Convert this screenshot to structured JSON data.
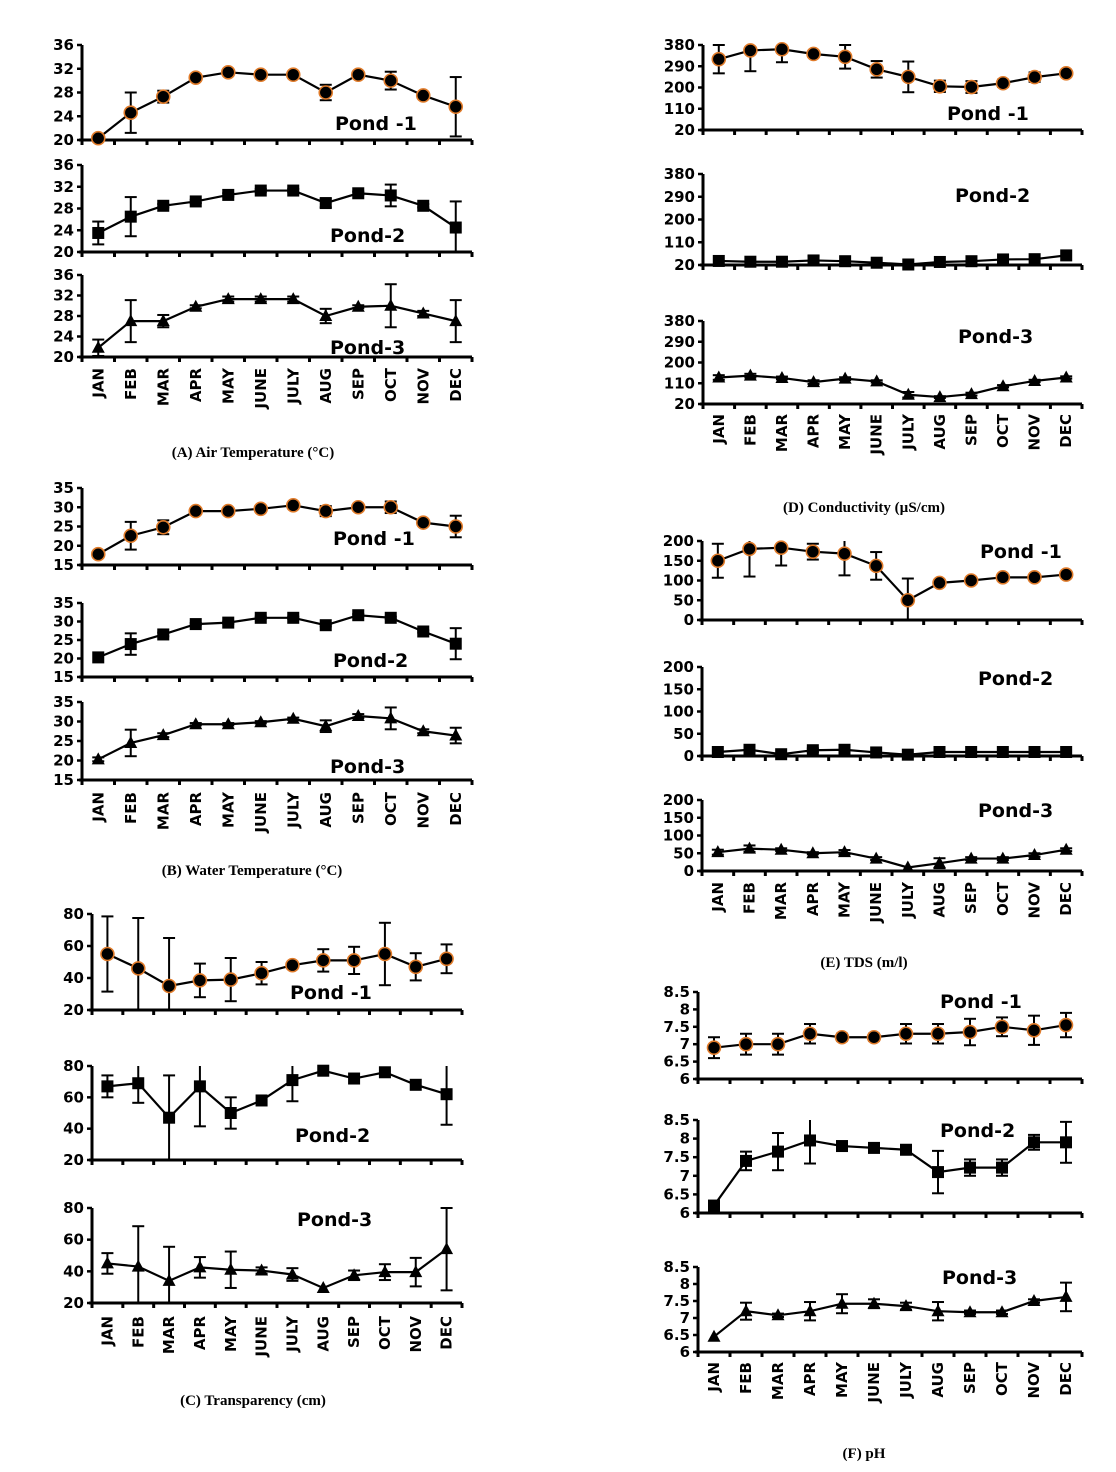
{
  "colors": {
    "line": "#000000",
    "marker_fill": "#000000",
    "pond1_marker_outline": "#e07b2a"
  },
  "chart_data": [
    {
      "id": "A",
      "type": "line",
      "title": "(A) Air Temperature (°C)",
      "xlabel": "",
      "ylabel": "",
      "categories": [
        "JAN",
        "FEB",
        "MAR",
        "APR",
        "MAY",
        "JUNE",
        "JULY",
        "AUG",
        "SEP",
        "OCT",
        "NOV",
        "DEC"
      ],
      "yticks": [
        "20",
        "24",
        "28",
        "32",
        "36"
      ],
      "ylim": [
        20,
        36
      ],
      "grid": false,
      "series": [
        {
          "name": "Pond -1",
          "marker": "circle",
          "values": [
            20.3,
            24.6,
            27.3,
            30.5,
            31.4,
            31.0,
            31.0,
            28.0,
            31.0,
            30.0,
            27.5,
            25.6
          ],
          "errors": [
            0,
            3.4,
            1.0,
            0.5,
            0.4,
            0.3,
            0.3,
            1.3,
            0.4,
            1.5,
            0.3,
            5.0
          ]
        },
        {
          "name": "Pond-2",
          "marker": "square",
          "values": [
            23.5,
            26.5,
            28.5,
            29.3,
            30.5,
            31.3,
            31.3,
            29.0,
            30.8,
            30.4,
            28.5,
            24.5
          ],
          "errors": [
            2.1,
            3.6,
            0.3,
            0.3,
            0.3,
            0.3,
            0.3,
            0.8,
            0.3,
            2.0,
            0.3,
            4.8
          ]
        },
        {
          "name": "Pond-3",
          "marker": "triangle",
          "values": [
            21.8,
            27.0,
            27.0,
            29.8,
            31.3,
            31.3,
            31.3,
            28.0,
            29.8,
            30.0,
            28.5,
            27.0
          ],
          "errors": [
            1.6,
            4.1,
            1.2,
            0.3,
            0.5,
            0.5,
            0.5,
            1.4,
            0.3,
            4.2,
            0.5,
            4.1
          ]
        }
      ]
    },
    {
      "id": "B",
      "type": "line",
      "title": "(B) Water Temperature (°C)",
      "xlabel": "",
      "ylabel": "",
      "categories": [
        "JAN",
        "FEB",
        "MAR",
        "APR",
        "MAY",
        "JUNE",
        "JULY",
        "AUG",
        "SEP",
        "OCT",
        "NOV",
        "DEC"
      ],
      "yticks": [
        "15",
        "20",
        "25",
        "30",
        "35"
      ],
      "ylim": [
        15,
        35
      ],
      "grid": false,
      "series": [
        {
          "name": "Pond -1",
          "marker": "circle",
          "values": [
            17.8,
            22.6,
            24.8,
            29.0,
            29.0,
            29.6,
            30.5,
            29.0,
            30.0,
            30.0,
            26.0,
            25.0
          ],
          "errors": [
            0,
            3.6,
            1.8,
            0.3,
            0.3,
            0.3,
            0.3,
            1.3,
            0.3,
            1.5,
            0.3,
            2.8
          ]
        },
        {
          "name": "Pond-2",
          "marker": "square",
          "values": [
            20.3,
            23.9,
            26.5,
            29.3,
            29.7,
            31.0,
            31.0,
            29.0,
            31.7,
            31.0,
            27.3,
            24.0
          ],
          "errors": [
            0,
            2.9,
            0.5,
            0.3,
            0.3,
            0.3,
            0.3,
            0.3,
            0.3,
            0.3,
            0.3,
            4.2
          ]
        },
        {
          "name": "Pond-3",
          "marker": "triangle",
          "values": [
            20.3,
            24.5,
            26.5,
            29.3,
            29.3,
            29.8,
            30.7,
            28.8,
            31.4,
            30.8,
            27.5,
            26.4
          ],
          "errors": [
            0.5,
            3.4,
            0.5,
            0.3,
            0.3,
            0.3,
            0.3,
            1.5,
            0.5,
            2.8,
            0.5,
            2.0
          ]
        }
      ]
    },
    {
      "id": "C",
      "type": "line",
      "title": "(C) Transparency (cm)",
      "xlabel": "",
      "ylabel": "",
      "categories": [
        "JAN",
        "FEB",
        "MAR",
        "APR",
        "MAY",
        "JUNE",
        "JULY",
        "AUG",
        "SEP",
        "OCT",
        "NOV",
        "DEC"
      ],
      "yticks": [
        "20",
        "40",
        "60",
        "80"
      ],
      "ylim": [
        20,
        80
      ],
      "grid": false,
      "series": [
        {
          "name": "Pond -1",
          "marker": "circle",
          "values": [
            55,
            46,
            35,
            38.5,
            39,
            43,
            48,
            51,
            51,
            55,
            47,
            52
          ],
          "errors": [
            23.5,
            31.5,
            30,
            10.5,
            13.5,
            7,
            0,
            7,
            8.5,
            19.5,
            8.5,
            9
          ]
        },
        {
          "name": "Pond-2",
          "marker": "square",
          "values": [
            67,
            69,
            47,
            67,
            50,
            58,
            71,
            77,
            72,
            76,
            68,
            62
          ],
          "errors": [
            7,
            12.5,
            27,
            25.5,
            10,
            0,
            13.5,
            0,
            0,
            0,
            0,
            19.5
          ]
        },
        {
          "name": "Pond-3",
          "marker": "triangle",
          "values": [
            45,
            43,
            34,
            42.5,
            41,
            40.5,
            38,
            29.5,
            37.5,
            39.5,
            39.5,
            54
          ],
          "errors": [
            6.5,
            25.5,
            21.5,
            6.5,
            11.5,
            2,
            4,
            0,
            3,
            5,
            9,
            26
          ]
        }
      ]
    },
    {
      "id": "D",
      "type": "line",
      "title": "(D) Conductivity (µS/cm)",
      "xlabel": "",
      "ylabel": "",
      "categories": [
        "JAN",
        "FEB",
        "MAR",
        "APR",
        "MAY",
        "JUNE",
        "JULY",
        "AUG",
        "SEP",
        "OCT",
        "NOV",
        "DEC"
      ],
      "yticks": [
        "20",
        "110",
        "200",
        "290",
        "380"
      ],
      "ylim": [
        20,
        380
      ],
      "grid": false,
      "series": [
        {
          "name": "Pond -1",
          "marker": "circle",
          "values": [
            320,
            357,
            362,
            342,
            330,
            277,
            245,
            205,
            202,
            218,
            244,
            260
          ],
          "errors": [
            60,
            88,
            55,
            12,
            50,
            35,
            65,
            24,
            25,
            15,
            20,
            8
          ]
        },
        {
          "name": "Pond-2",
          "marker": "square",
          "values": [
            36,
            33,
            33,
            38,
            35,
            29,
            22,
            32,
            35,
            42,
            43,
            58
          ],
          "errors": [
            0,
            0,
            0,
            18,
            0,
            0,
            0,
            0,
            0,
            0,
            0,
            0
          ]
        },
        {
          "name": "Pond-3",
          "marker": "triangle",
          "values": [
            135,
            143,
            133,
            115,
            130,
            118,
            60,
            50,
            63,
            97,
            120,
            135
          ],
          "errors": [
            10,
            8,
            6,
            8,
            6,
            5,
            12,
            4,
            6,
            5,
            5,
            5
          ]
        }
      ]
    },
    {
      "id": "E",
      "type": "line",
      "title": "(E) TDS (m/l)",
      "xlabel": "",
      "ylabel": "",
      "categories": [
        "JAN",
        "FEB",
        "MAR",
        "APR",
        "MAY",
        "JUNE",
        "JULY",
        "AUG",
        "SEP",
        "OCT",
        "NOV",
        "DEC"
      ],
      "yticks": [
        "0",
        "50",
        "100",
        "150",
        "200"
      ],
      "ylim": [
        0,
        200
      ],
      "grid": false,
      "series": [
        {
          "name": "Pond -1",
          "marker": "circle",
          "values": [
            150,
            180,
            183,
            173,
            168,
            137,
            50,
            94,
            100,
            108,
            108,
            115
          ],
          "errors": [
            43,
            70,
            45,
            20,
            55,
            35,
            55,
            0,
            0,
            0,
            0,
            0
          ]
        },
        {
          "name": "Pond-2",
          "marker": "square",
          "values": [
            9,
            14,
            4,
            13,
            14,
            8,
            3,
            9,
            9,
            9,
            9,
            9
          ],
          "errors": [
            0,
            0,
            0,
            4,
            0,
            0,
            0,
            0,
            0,
            0,
            0,
            0
          ]
        },
        {
          "name": "Pond-3",
          "marker": "triangle",
          "values": [
            53,
            63,
            60,
            50,
            53,
            35,
            10,
            22,
            35,
            35,
            45,
            60
          ],
          "errors": [
            7,
            9,
            4,
            3,
            6,
            4,
            0,
            14,
            4,
            4,
            5,
            4
          ]
        }
      ]
    },
    {
      "id": "F",
      "type": "line",
      "title": "(F) pH",
      "xlabel": "",
      "ylabel": "",
      "categories": [
        "JAN",
        "FEB",
        "MAR",
        "APR",
        "MAY",
        "JUNE",
        "JULY",
        "AUG",
        "SEP",
        "OCT",
        "NOV",
        "DEC"
      ],
      "yticks": [
        "6",
        "6.5",
        "7",
        "7.5",
        "8",
        "8.5"
      ],
      "ylim": [
        6,
        8.5
      ],
      "grid": false,
      "series": [
        {
          "name": "Pond -1",
          "marker": "circle",
          "values": [
            6.9,
            7.0,
            7.0,
            7.3,
            7.2,
            7.2,
            7.3,
            7.3,
            7.35,
            7.5,
            7.4,
            7.55
          ],
          "errors": [
            0.3,
            0.3,
            0.3,
            0.28,
            0.1,
            0.1,
            0.28,
            0.28,
            0.38,
            0.27,
            0.42,
            0.35
          ]
        },
        {
          "name": "Pond-2",
          "marker": "square",
          "values": [
            6.2,
            7.4,
            7.65,
            7.95,
            7.8,
            7.75,
            7.7,
            7.1,
            7.22,
            7.22,
            7.9,
            7.9
          ],
          "errors": [
            0,
            0.25,
            0.5,
            0.62,
            0.05,
            0.05,
            0.05,
            0.57,
            0.22,
            0.22,
            0.2,
            0.55
          ]
        },
        {
          "name": "Pond-3",
          "marker": "triangle",
          "values": [
            6.45,
            7.2,
            7.08,
            7.2,
            7.42,
            7.42,
            7.35,
            7.2,
            7.17,
            7.17,
            7.5,
            7.62
          ],
          "errors": [
            0,
            0.25,
            0.05,
            0.27,
            0.28,
            0.13,
            0.1,
            0.27,
            0.05,
            0.05,
            0.05,
            0.42
          ]
        }
      ]
    }
  ]
}
